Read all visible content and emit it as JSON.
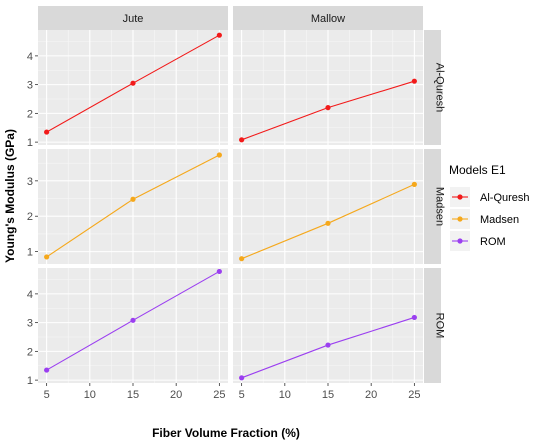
{
  "chart_data": {
    "type": "line",
    "xlabel": "Fiber Volume Fraction (%)",
    "ylabel": "Young's Modulus (GPa)",
    "columns": [
      "Jute",
      "Mallow"
    ],
    "rows": [
      "Al-Quresh",
      "Madsen",
      "ROM"
    ],
    "x": [
      5,
      15,
      25
    ],
    "xticks": [
      5,
      10,
      15,
      20,
      25
    ],
    "xlim": [
      4,
      26
    ],
    "row_ylims": [
      [
        0.9,
        4.9
      ],
      [
        0.65,
        3.9
      ],
      [
        0.9,
        4.9
      ]
    ],
    "row_yticks": [
      [
        1,
        2,
        3,
        4
      ],
      [
        1,
        2,
        3
      ],
      [
        1,
        2,
        3,
        4
      ]
    ],
    "legend": {
      "title": "Models E1",
      "position": "right",
      "items": [
        "Al-Quresh",
        "Madsen",
        "ROM"
      ]
    },
    "colors": {
      "Al-Quresh": "#f21a1a",
      "Madsen": "#f5a81c",
      "ROM": "#9b3ff0"
    },
    "series": [
      {
        "name": "Al-Quresh",
        "row": "Al-Quresh",
        "column": "Jute",
        "values": [
          1.35,
          3.05,
          4.72
        ]
      },
      {
        "name": "Al-Quresh",
        "row": "Al-Quresh",
        "column": "Mallow",
        "values": [
          1.08,
          2.2,
          3.12
        ]
      },
      {
        "name": "Madsen",
        "row": "Madsen",
        "column": "Jute",
        "values": [
          0.85,
          2.48,
          3.73
        ]
      },
      {
        "name": "Madsen",
        "row": "Madsen",
        "column": "Mallow",
        "values": [
          0.8,
          1.8,
          2.9
        ]
      },
      {
        "name": "ROM",
        "row": "ROM",
        "column": "Jute",
        "values": [
          1.35,
          3.08,
          4.78
        ]
      },
      {
        "name": "ROM",
        "row": "ROM",
        "column": "Mallow",
        "values": [
          1.08,
          2.22,
          3.18
        ]
      }
    ],
    "grid": true
  }
}
